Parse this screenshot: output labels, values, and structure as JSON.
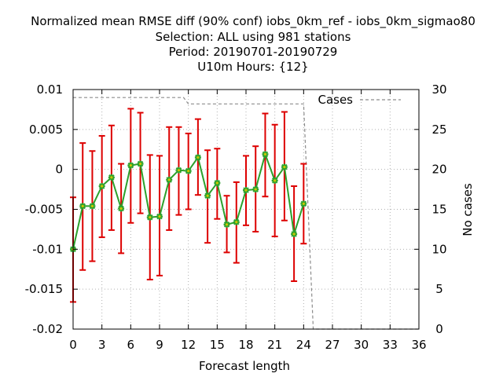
{
  "chart_data": {
    "type": "line",
    "title_lines": [
      "Normalized mean RMSE diff (90% conf) iobs_0km_ref - iobs_0km_sigmao80",
      "Selection: ALL using   981 stations",
      "Period: 20190701-20190729",
      "U10m   Hours: {12}"
    ],
    "xlabel": "Forecast length",
    "ylabel_right": "No cases",
    "xlim": [
      0,
      36
    ],
    "ylim": [
      -0.02,
      0.01
    ],
    "y2lim": [
      0,
      30
    ],
    "x_ticks": [
      "0",
      "3",
      "6",
      "9",
      "12",
      "15",
      "18",
      "21",
      "24",
      "27",
      "30",
      "33",
      "36"
    ],
    "y_ticks": [
      "-0.02",
      "-0.015",
      "-0.01",
      "-0.005",
      "0",
      "0.005",
      "0.01"
    ],
    "y2_ticks": [
      "0",
      "5",
      "10",
      "15",
      "20",
      "25",
      "30"
    ],
    "grid": true,
    "legend": {
      "position": "top-right",
      "entries": [
        {
          "label": "Cases"
        }
      ]
    },
    "series": [
      {
        "name": "Normalized mean RMSE diff",
        "color": "#2ca02c",
        "marker_color": "#c8c800",
        "x": [
          0,
          1,
          2,
          3,
          4,
          5,
          6,
          7,
          8,
          9,
          10,
          11,
          12,
          13,
          14,
          15,
          16,
          17,
          18,
          19,
          20,
          21,
          22,
          23,
          24
        ],
        "values": [
          -0.01,
          -0.0046,
          -0.0046,
          -0.0021,
          -0.001,
          -0.0049,
          0.0005,
          0.0007,
          -0.006,
          -0.0059,
          -0.0013,
          -0.0001,
          -0.0002,
          0.0015,
          -0.0033,
          -0.0017,
          -0.0069,
          -0.0066,
          -0.0026,
          -0.0025,
          0.0019,
          -0.0014,
          0.0003,
          -0.0081,
          -0.0043
        ]
      }
    ],
    "error_bars": {
      "color": "#dd0000",
      "lower": [
        -0.0166,
        -0.0126,
        -0.0115,
        -0.0085,
        -0.0076,
        -0.0105,
        -0.0067,
        -0.0055,
        -0.0138,
        -0.0133,
        -0.0076,
        -0.0057,
        -0.005,
        -0.0032,
        -0.0092,
        -0.0062,
        -0.0104,
        -0.0117,
        -0.007,
        -0.0078,
        -0.0034,
        -0.0084,
        -0.0064,
        -0.014,
        -0.0093
      ],
      "upper": [
        -0.0035,
        0.0033,
        0.0023,
        0.0042,
        0.0055,
        0.0007,
        0.0076,
        0.0071,
        0.0018,
        0.0017,
        0.0053,
        0.0053,
        0.0045,
        0.0063,
        0.0024,
        0.0026,
        -0.0033,
        -0.0016,
        0.0017,
        0.0029,
        0.007,
        0.0056,
        0.0072,
        -0.0021,
        0.0007
      ]
    },
    "cases": {
      "name": "Cases",
      "color": "#8c8c8c",
      "x": [
        0,
        11.5,
        12,
        24,
        25,
        36
      ],
      "values": [
        29,
        29,
        28.2,
        28.2,
        0,
        0
      ]
    }
  }
}
